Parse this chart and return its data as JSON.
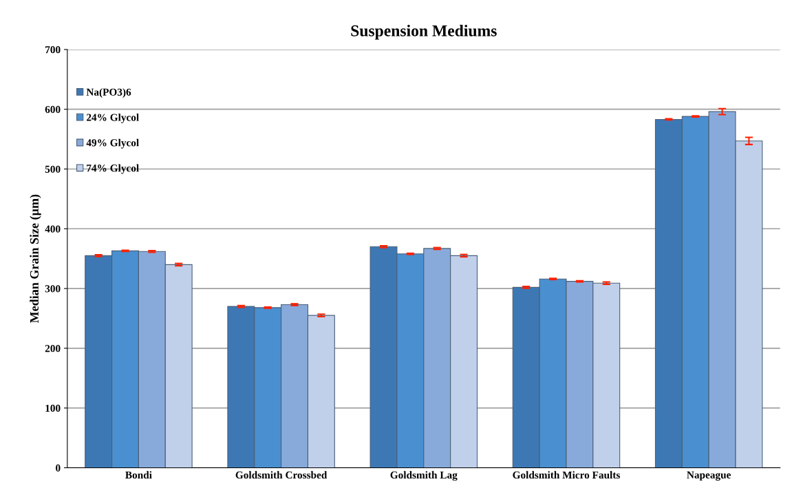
{
  "chart_data": {
    "type": "bar",
    "title": "Suspension Mediums",
    "ylabel": "Median Grain Size (µm)",
    "categories": [
      "Bondi",
      "Goldsmith Crossbed",
      "Goldsmith Lag",
      "Goldsmith Micro Faults",
      "Napeague"
    ],
    "series": [
      {
        "name": "Na(PO3)6",
        "color": "#3d78b4",
        "values": [
          355,
          270,
          370,
          302,
          583
        ],
        "errors": [
          1.5,
          1.5,
          1.5,
          1.5,
          1
        ]
      },
      {
        "name": "24% Glycol",
        "color": "#4a8fd0",
        "values": [
          363,
          268,
          358,
          316,
          588
        ],
        "errors": [
          1,
          1,
          1,
          1,
          1
        ]
      },
      {
        "name": "49% Glycol",
        "color": "#88aadb",
        "values": [
          362,
          273,
          367,
          312,
          596
        ],
        "errors": [
          1.5,
          1.5,
          1.5,
          1,
          5
        ]
      },
      {
        "name": "74% Glycol",
        "color": "#c0d0ea",
        "values": [
          340,
          255,
          355,
          309,
          547
        ],
        "errors": [
          2,
          2,
          2,
          2,
          6
        ]
      }
    ],
    "ylim": [
      0,
      700
    ],
    "yticks": [
      0,
      100,
      200,
      300,
      400,
      500,
      600,
      700
    ],
    "grid": "y",
    "legend": "top left"
  }
}
